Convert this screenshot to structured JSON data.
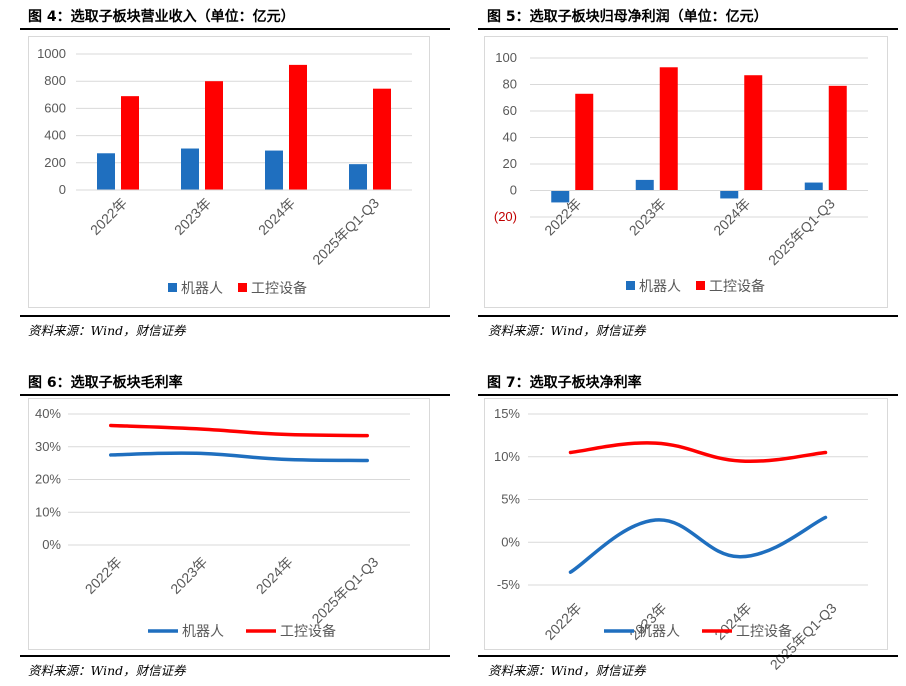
{
  "colors": {
    "robot": "#1f6fbf",
    "control": "#ff0000",
    "grid": "#d9d9d9",
    "axis_text": "#595959",
    "neg_text": "#c00000"
  },
  "source_text": "资料来源：Wind，财信证券",
  "chart_data": [
    {
      "id": "fig4",
      "type": "bar",
      "title": "图 4：选取子板块营业收入（单位：亿元）",
      "categories": [
        "2022年",
        "2023年",
        "2024年",
        "2025年Q1-Q3"
      ],
      "series": [
        {
          "name": "机器人",
          "values": [
            270,
            305,
            290,
            190
          ]
        },
        {
          "name": "工控设备",
          "values": [
            690,
            800,
            920,
            745
          ]
        }
      ],
      "ylim": [
        0,
        1000
      ],
      "yticks": [
        "0",
        "200",
        "400",
        "600",
        "800",
        "1000"
      ],
      "ytick_values": [
        0,
        200,
        400,
        600,
        800,
        1000
      ],
      "legend": "bottom"
    },
    {
      "id": "fig5",
      "type": "bar",
      "title": "图 5：选取子板块归母净利润（单位：亿元）",
      "categories": [
        "2022年",
        "2023年",
        "2024年",
        "2025年Q1-Q3"
      ],
      "series": [
        {
          "name": "机器人",
          "values": [
            -9,
            8,
            -6,
            6
          ]
        },
        {
          "name": "工控设备",
          "values": [
            73,
            93,
            87,
            79
          ]
        }
      ],
      "ylim": [
        -20,
        100
      ],
      "yticks": [
        "(20)",
        "0",
        "20",
        "40",
        "60",
        "80",
        "100"
      ],
      "ytick_values": [
        -20,
        0,
        20,
        40,
        60,
        80,
        100
      ],
      "legend": "bottom"
    },
    {
      "id": "fig6",
      "type": "line",
      "title": "图 6：选取子板块毛利率",
      "categories": [
        "2022年",
        "2023年",
        "2024年",
        "2025年Q1-Q3"
      ],
      "series": [
        {
          "name": "机器人",
          "values": [
            27.5,
            28.0,
            26.2,
            25.8
          ]
        },
        {
          "name": "工控设备",
          "values": [
            36.5,
            35.5,
            33.8,
            33.4
          ]
        }
      ],
      "ylim": [
        0,
        40
      ],
      "yticks": [
        "0%",
        "10%",
        "20%",
        "30%",
        "40%"
      ],
      "ytick_values": [
        0,
        10,
        20,
        30,
        40
      ],
      "legend": "bottom"
    },
    {
      "id": "fig7",
      "type": "line",
      "title": "图 7：选取子板块净利率",
      "categories": [
        "2022年",
        "2023年",
        "2024年",
        "2025年Q1-Q3"
      ],
      "series": [
        {
          "name": "机器人",
          "values": [
            -3.5,
            2.6,
            -1.7,
            2.9
          ]
        },
        {
          "name": "工控设备",
          "values": [
            10.5,
            11.6,
            9.5,
            10.5
          ]
        }
      ],
      "ylim": [
        -5,
        15
      ],
      "yticks": [
        "-5%",
        "0%",
        "5%",
        "10%",
        "15%"
      ],
      "ytick_values": [
        -5,
        0,
        5,
        10,
        15
      ],
      "legend": "bottom"
    }
  ]
}
